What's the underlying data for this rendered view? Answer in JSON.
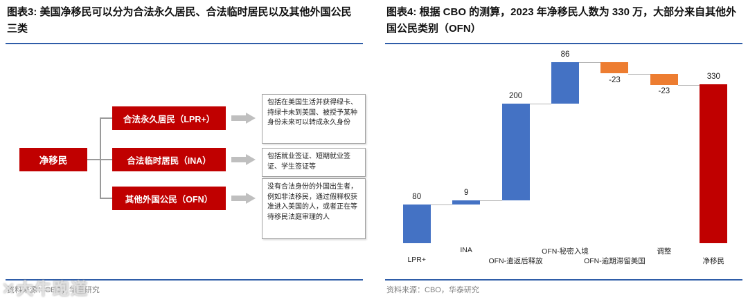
{
  "left_panel": {
    "title": "图表3:  美国净移民可以分为合法永久居民、合法临时居民以及其他外国公民三类",
    "diagram": {
      "root": "净移民",
      "branches": [
        {
          "label": "合法永久居民（LPR+）",
          "desc": "包括在美国生活并获得绿卡、持绿卡未到美国、被授予某种身份未来可以转成永久身份"
        },
        {
          "label": "合法临时居民（INA）",
          "desc": "包括就业签证、短期就业签证、学生签证等"
        },
        {
          "label": "其他外国公民（OFN）",
          "desc": "没有合法身份的外国出生者，例如非法移民，通过假释权获准进入美国的人，或者正在等待移民法庭审理的人"
        }
      ]
    },
    "source": "资料来源：CBO，华泰研究"
  },
  "right_panel": {
    "title": "图表4:  根据 CBO 的测算，2023 年净移民人数为 330 万，大部分来自其他外国公民类别（OFN）",
    "source": "资料来源：CBO，华泰研究"
  },
  "chart_data": {
    "type": "bar",
    "subtype": "waterfall",
    "title": "根据 CBO 的测算，2023 年净移民人数为 330 万，大部分来自其他外国公民类别（OFN）",
    "categories": [
      "LPR+",
      "INA",
      "OFN-遣返后释放",
      "OFN-秘密入境",
      "OFN-逾期滞留美国",
      "调整",
      "净移民"
    ],
    "values": [
      80,
      9,
      200,
      86,
      -23,
      -23,
      330
    ],
    "bar_roles": [
      "delta",
      "delta",
      "delta",
      "delta",
      "delta",
      "delta",
      "total"
    ],
    "value_labels": [
      "80",
      "9",
      "200",
      "86",
      "-23",
      "-23",
      "330"
    ],
    "cumulative": [
      80,
      89,
      289,
      375,
      352,
      329,
      330
    ],
    "colors": {
      "increase": "#4472c4",
      "decrease": "#ed7d31",
      "total": "#c00000"
    },
    "xlabel": "",
    "ylabel": "",
    "ylim": [
      0,
      390
    ],
    "grid": false,
    "legend": false
  },
  "watermark": {
    "text": "✕大牛跑道"
  },
  "theme": {
    "accent_blue": "#2f5da8",
    "bar_blue": "#4472c4",
    "bar_orange": "#ed7d31",
    "brand_red": "#c00000",
    "source_gray": "#7f7f7f"
  }
}
